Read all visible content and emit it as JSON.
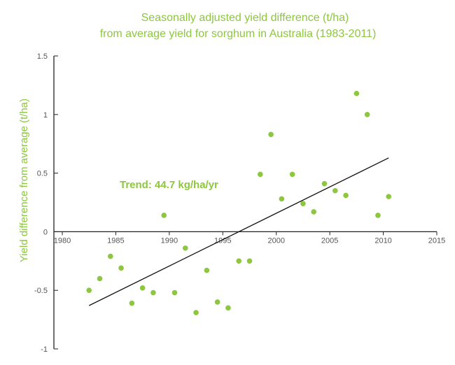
{
  "chart_data": {
    "type": "scatter",
    "title_lines": [
      "Seasonally adjusted yield difference (t/ha)",
      "from average yield for sorghum in Australia (1983-2011)"
    ],
    "xlabel": "",
    "ylabel": "Yield difference from average (t/ha)",
    "xlim": [
      1980,
      2015
    ],
    "ylim": [
      -1,
      1.5
    ],
    "x_ticks": [
      1980,
      1985,
      1990,
      1995,
      2000,
      2005,
      2010,
      2015
    ],
    "y_ticks": [
      -1,
      -0.5,
      0,
      0.5,
      1,
      1.5
    ],
    "y_tick_labels": [
      "-1",
      "-0.5",
      "0",
      "0.5",
      "1",
      "1.5"
    ],
    "grid": false,
    "points": [
      {
        "x": 1982.5,
        "y": -0.5
      },
      {
        "x": 1983.5,
        "y": -0.4
      },
      {
        "x": 1984.5,
        "y": -0.21
      },
      {
        "x": 1985.5,
        "y": -0.31
      },
      {
        "x": 1986.5,
        "y": -0.61
      },
      {
        "x": 1987.5,
        "y": -0.48
      },
      {
        "x": 1988.5,
        "y": -0.52
      },
      {
        "x": 1989.5,
        "y": 0.14
      },
      {
        "x": 1990.5,
        "y": -0.52
      },
      {
        "x": 1991.5,
        "y": -0.14
      },
      {
        "x": 1992.5,
        "y": -0.69
      },
      {
        "x": 1993.5,
        "y": -0.33
      },
      {
        "x": 1994.5,
        "y": -0.6
      },
      {
        "x": 1995.5,
        "y": -0.65
      },
      {
        "x": 1996.5,
        "y": -0.25
      },
      {
        "x": 1997.5,
        "y": -0.25
      },
      {
        "x": 1998.5,
        "y": 0.49
      },
      {
        "x": 1999.5,
        "y": 0.83
      },
      {
        "x": 2000.5,
        "y": 0.28
      },
      {
        "x": 2001.5,
        "y": 0.49
      },
      {
        "x": 2002.5,
        "y": 0.24
      },
      {
        "x": 2003.5,
        "y": 0.17
      },
      {
        "x": 2004.5,
        "y": 0.41
      },
      {
        "x": 2005.5,
        "y": 0.35
      },
      {
        "x": 2006.5,
        "y": 0.31
      },
      {
        "x": 2007.5,
        "y": 1.18
      },
      {
        "x": 2008.5,
        "y": 1.0
      },
      {
        "x": 2009.5,
        "y": 0.14
      },
      {
        "x": 2010.5,
        "y": 0.3
      }
    ],
    "trend": {
      "label": "Trend: 44.7 kg/ha/yr",
      "x": [
        1982.5,
        2010.5
      ],
      "y": [
        -0.63,
        0.63
      ]
    },
    "colors": {
      "points": "#8dc63f",
      "title": "#8dc63f",
      "trend_line": "#111111",
      "axis": "#222222",
      "tick_text": "#555555"
    }
  }
}
